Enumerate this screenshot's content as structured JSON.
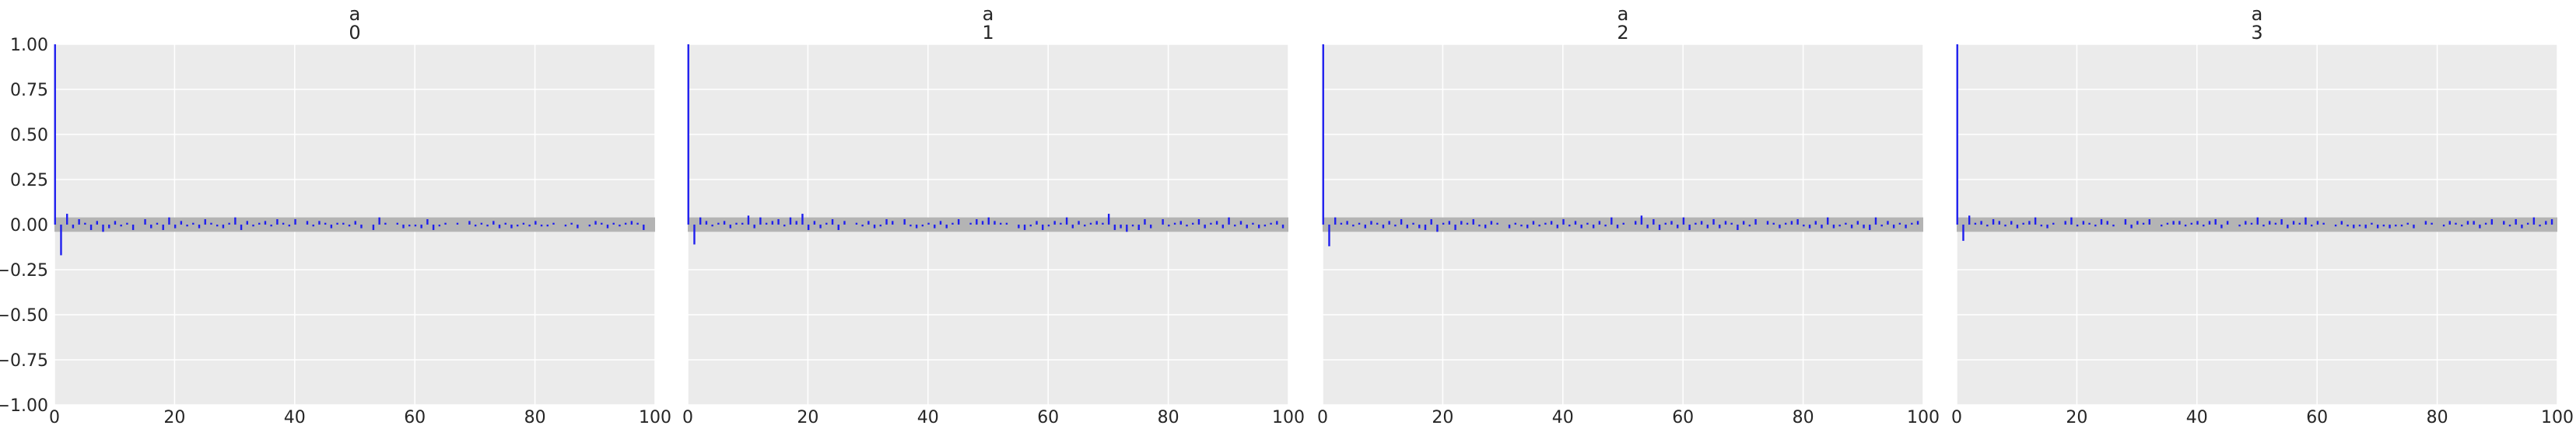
{
  "chart_data": [
    {
      "type": "bar",
      "title_lines": [
        "a",
        "0"
      ],
      "x": [
        0,
        1,
        2,
        3,
        4,
        5,
        6,
        7,
        8,
        9,
        10,
        11,
        12,
        13,
        14,
        15,
        16,
        17,
        18,
        19,
        20,
        21,
        22,
        23,
        24,
        25,
        26,
        27,
        28,
        29,
        30,
        31,
        32,
        33,
        34,
        35,
        36,
        37,
        38,
        39,
        40,
        41,
        42,
        43,
        44,
        45,
        46,
        47,
        48,
        49,
        50,
        51,
        52,
        53,
        54,
        55,
        56,
        57,
        58,
        59,
        60,
        61,
        62,
        63,
        64,
        65,
        66,
        67,
        68,
        69,
        70,
        71,
        72,
        73,
        74,
        75,
        76,
        77,
        78,
        79,
        80,
        81,
        82,
        83,
        84,
        85,
        86,
        87,
        88,
        89,
        90,
        91,
        92,
        93,
        94,
        95,
        96,
        97,
        98,
        99
      ],
      "values": [
        1.0,
        -0.17,
        0.06,
        -0.02,
        0.03,
        0.01,
        -0.03,
        0.02,
        -0.04,
        -0.02,
        0.02,
        -0.01,
        0.01,
        -0.03,
        0.0,
        0.03,
        -0.02,
        0.01,
        -0.03,
        0.04,
        -0.02,
        0.02,
        -0.01,
        0.01,
        -0.02,
        0.03,
        0.01,
        -0.01,
        -0.02,
        0.01,
        0.04,
        -0.03,
        0.02,
        -0.01,
        0.01,
        0.02,
        -0.01,
        0.03,
        0.01,
        -0.01,
        0.03,
        0.0,
        0.02,
        -0.01,
        0.02,
        0.01,
        -0.02,
        0.01,
        0.01,
        -0.01,
        0.02,
        -0.02,
        0.0,
        -0.03,
        0.04,
        0.01,
        0.0,
        0.01,
        -0.02,
        -0.01,
        -0.01,
        -0.02,
        0.03,
        -0.03,
        -0.01,
        0.01,
        0.0,
        0.01,
        0.0,
        0.02,
        -0.01,
        0.01,
        -0.01,
        0.02,
        -0.02,
        0.01,
        -0.02,
        -0.01,
        0.01,
        -0.01,
        0.02,
        -0.01,
        -0.01,
        0.01,
        0.0,
        -0.01,
        0.01,
        -0.02,
        0.0,
        -0.01,
        0.02,
        0.01,
        -0.02,
        0.01,
        -0.01,
        0.01,
        0.02,
        0.01,
        -0.03,
        0.0
      ],
      "band": [
        -0.04,
        0.04
      ],
      "xlim": [
        0,
        100
      ],
      "ylim": [
        -1.0,
        1.0
      ],
      "xticks": [
        "0",
        "20",
        "40",
        "60",
        "80",
        "100"
      ],
      "yticks": [
        "1.00",
        "0.75",
        "0.50",
        "0.25",
        "0.00",
        "−0.25",
        "−0.50",
        "−0.75",
        "−1.00"
      ],
      "grid": true
    },
    {
      "type": "bar",
      "title_lines": [
        "a",
        "1"
      ],
      "x": [
        0,
        1,
        2,
        3,
        4,
        5,
        6,
        7,
        8,
        9,
        10,
        11,
        12,
        13,
        14,
        15,
        16,
        17,
        18,
        19,
        20,
        21,
        22,
        23,
        24,
        25,
        26,
        27,
        28,
        29,
        30,
        31,
        32,
        33,
        34,
        35,
        36,
        37,
        38,
        39,
        40,
        41,
        42,
        43,
        44,
        45,
        46,
        47,
        48,
        49,
        50,
        51,
        52,
        53,
        54,
        55,
        56,
        57,
        58,
        59,
        60,
        61,
        62,
        63,
        64,
        65,
        66,
        67,
        68,
        69,
        70,
        71,
        72,
        73,
        74,
        75,
        76,
        77,
        78,
        79,
        80,
        81,
        82,
        83,
        84,
        85,
        86,
        87,
        88,
        89,
        90,
        91,
        92,
        93,
        94,
        95,
        96,
        97,
        98,
        99
      ],
      "values": [
        1.0,
        -0.11,
        0.04,
        0.02,
        -0.01,
        0.01,
        0.02,
        -0.02,
        0.01,
        0.01,
        0.05,
        -0.02,
        0.04,
        0.01,
        0.02,
        0.03,
        -0.01,
        0.04,
        0.02,
        0.06,
        -0.03,
        0.02,
        -0.02,
        0.01,
        0.03,
        -0.03,
        0.02,
        0.0,
        0.01,
        -0.01,
        0.02,
        -0.02,
        -0.01,
        0.03,
        0.02,
        0.0,
        0.03,
        -0.01,
        -0.02,
        -0.01,
        0.01,
        -0.02,
        0.02,
        -0.02,
        0.01,
        0.03,
        0.0,
        0.01,
        0.03,
        0.02,
        0.04,
        0.02,
        0.01,
        0.01,
        0.0,
        -0.02,
        -0.03,
        -0.01,
        0.02,
        -0.03,
        -0.01,
        0.02,
        0.01,
        0.04,
        -0.02,
        0.02,
        -0.01,
        0.01,
        0.02,
        0.01,
        0.06,
        -0.03,
        -0.02,
        -0.04,
        -0.01,
        -0.03,
        0.03,
        -0.02,
        0.0,
        0.03,
        -0.01,
        0.01,
        0.02,
        -0.01,
        0.01,
        0.03,
        -0.02,
        0.01,
        0.02,
        -0.02,
        0.04,
        -0.01,
        0.02,
        -0.02,
        0.01,
        -0.02,
        -0.01,
        0.01,
        0.02,
        -0.02
      ],
      "band": [
        -0.04,
        0.04
      ],
      "xlim": [
        0,
        100
      ],
      "ylim": [
        -1.0,
        1.0
      ],
      "xticks": [
        "0",
        "20",
        "40",
        "60",
        "80",
        "100"
      ],
      "grid": true
    },
    {
      "type": "bar",
      "title_lines": [
        "a",
        "2"
      ],
      "x": [
        0,
        1,
        2,
        3,
        4,
        5,
        6,
        7,
        8,
        9,
        10,
        11,
        12,
        13,
        14,
        15,
        16,
        17,
        18,
        19,
        20,
        21,
        22,
        23,
        24,
        25,
        26,
        27,
        28,
        29,
        30,
        31,
        32,
        33,
        34,
        35,
        36,
        37,
        38,
        39,
        40,
        41,
        42,
        43,
        44,
        45,
        46,
        47,
        48,
        49,
        50,
        51,
        52,
        53,
        54,
        55,
        56,
        57,
        58,
        59,
        60,
        61,
        62,
        63,
        64,
        65,
        66,
        67,
        68,
        69,
        70,
        71,
        72,
        73,
        74,
        75,
        76,
        77,
        78,
        79,
        80,
        81,
        82,
        83,
        84,
        85,
        86,
        87,
        88,
        89,
        90,
        91,
        92,
        93,
        94,
        95,
        96,
        97,
        98,
        99
      ],
      "values": [
        1.0,
        -0.12,
        0.04,
        0.01,
        0.02,
        -0.01,
        0.01,
        -0.02,
        0.02,
        0.01,
        -0.02,
        0.02,
        -0.01,
        0.03,
        -0.02,
        0.01,
        -0.02,
        -0.03,
        0.03,
        -0.04,
        0.01,
        0.02,
        -0.03,
        0.02,
        0.01,
        0.03,
        -0.01,
        -0.02,
        0.02,
        0.01,
        0.0,
        -0.02,
        0.01,
        -0.01,
        -0.02,
        0.02,
        -0.01,
        0.01,
        0.02,
        -0.02,
        0.03,
        -0.01,
        0.02,
        -0.02,
        0.01,
        -0.02,
        0.02,
        -0.01,
        0.04,
        -0.02,
        0.01,
        0.0,
        0.02,
        0.05,
        -0.02,
        0.03,
        -0.03,
        0.01,
        0.02,
        -0.02,
        0.04,
        -0.03,
        0.01,
        0.02,
        -0.02,
        0.03,
        -0.02,
        0.02,
        0.01,
        -0.03,
        0.02,
        -0.01,
        0.03,
        0.0,
        0.02,
        0.01,
        -0.02,
        0.01,
        0.02,
        0.03,
        -0.01,
        -0.02,
        0.02,
        -0.02,
        0.04,
        -0.02,
        -0.01,
        0.01,
        -0.02,
        0.02,
        -0.02,
        -0.03,
        0.04,
        -0.01,
        0.02,
        -0.02,
        0.01,
        -0.02,
        0.01,
        0.02
      ],
      "band": [
        -0.04,
        0.04
      ],
      "xlim": [
        0,
        100
      ],
      "ylim": [
        -1.0,
        1.0
      ],
      "xticks": [
        "0",
        "20",
        "40",
        "60",
        "80",
        "100"
      ],
      "grid": true
    },
    {
      "type": "bar",
      "title_lines": [
        "a",
        "3"
      ],
      "x": [
        0,
        1,
        2,
        3,
        4,
        5,
        6,
        7,
        8,
        9,
        10,
        11,
        12,
        13,
        14,
        15,
        16,
        17,
        18,
        19,
        20,
        21,
        22,
        23,
        24,
        25,
        26,
        27,
        28,
        29,
        30,
        31,
        32,
        33,
        34,
        35,
        36,
        37,
        38,
        39,
        40,
        41,
        42,
        43,
        44,
        45,
        46,
        47,
        48,
        49,
        50,
        51,
        52,
        53,
        54,
        55,
        56,
        57,
        58,
        59,
        60,
        61,
        62,
        63,
        64,
        65,
        66,
        67,
        68,
        69,
        70,
        71,
        72,
        73,
        74,
        75,
        76,
        77,
        78,
        79,
        80,
        81,
        82,
        83,
        84,
        85,
        86,
        87,
        88,
        89,
        90,
        91,
        92,
        93,
        94,
        95,
        96,
        97,
        98,
        99
      ],
      "values": [
        1.0,
        -0.09,
        0.05,
        0.01,
        0.02,
        -0.01,
        0.03,
        0.02,
        -0.01,
        0.02,
        -0.02,
        0.01,
        0.02,
        0.04,
        -0.01,
        -0.02,
        0.01,
        0.0,
        0.02,
        0.04,
        -0.01,
        0.02,
        0.01,
        -0.01,
        0.03,
        0.02,
        -0.01,
        0.0,
        0.03,
        -0.02,
        0.02,
        0.01,
        0.03,
        0.0,
        -0.01,
        0.01,
        0.02,
        0.02,
        -0.01,
        0.01,
        0.02,
        -0.01,
        0.02,
        0.03,
        -0.02,
        0.02,
        0.0,
        -0.01,
        0.02,
        0.01,
        0.04,
        -0.01,
        0.02,
        0.01,
        0.03,
        -0.02,
        0.02,
        0.01,
        0.04,
        -0.01,
        0.02,
        0.01,
        0.0,
        -0.01,
        0.02,
        -0.01,
        -0.02,
        -0.01,
        -0.02,
        0.01,
        -0.02,
        -0.01,
        -0.02,
        -0.01,
        -0.01,
        0.01,
        -0.02,
        0.0,
        0.02,
        0.01,
        0.0,
        -0.01,
        0.02,
        0.01,
        -0.01,
        0.02,
        0.02,
        -0.02,
        0.01,
        0.03,
        0.0,
        0.02,
        -0.01,
        0.03,
        -0.02,
        0.01,
        0.04,
        -0.01,
        0.02,
        0.03
      ],
      "band": [
        -0.04,
        0.04
      ],
      "xlim": [
        0,
        100
      ],
      "ylim": [
        -1.0,
        1.0
      ],
      "xticks": [
        "0",
        "20",
        "40",
        "60",
        "80",
        "100"
      ],
      "grid": true
    }
  ],
  "colors": {
    "bar": "#1f1fee",
    "band": "#b4b4b4",
    "plot_bg": "#ebebeb",
    "grid": "#ffffff",
    "text": "#262626"
  }
}
